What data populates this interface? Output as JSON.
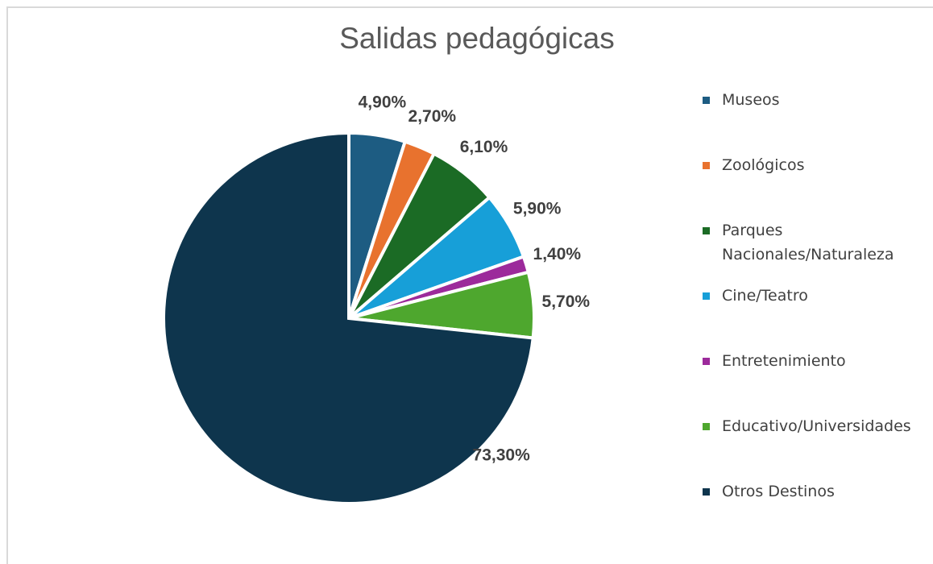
{
  "chart_data": {
    "type": "pie",
    "title": "Salidas pedagógicas",
    "categories": [
      "Museos",
      "Zoológicos",
      "Parques Nacionales/Naturaleza",
      "Cine/Teatro",
      "Entretenimiento",
      "Educativo/Universidades",
      "Otros Destinos"
    ],
    "values": [
      4.9,
      2.7,
      6.1,
      5.9,
      1.4,
      5.7,
      73.3
    ],
    "value_labels": [
      "4,90%",
      "2,70%",
      "6,10%",
      "5,90%",
      "1,40%",
      "5,70%",
      "73,30%"
    ],
    "colors": [
      "#1d5c82",
      "#e8722e",
      "#1b6b25",
      "#179fd8",
      "#9c2a9b",
      "#4ea72e",
      "#0e354d"
    ],
    "legend": "right"
  }
}
